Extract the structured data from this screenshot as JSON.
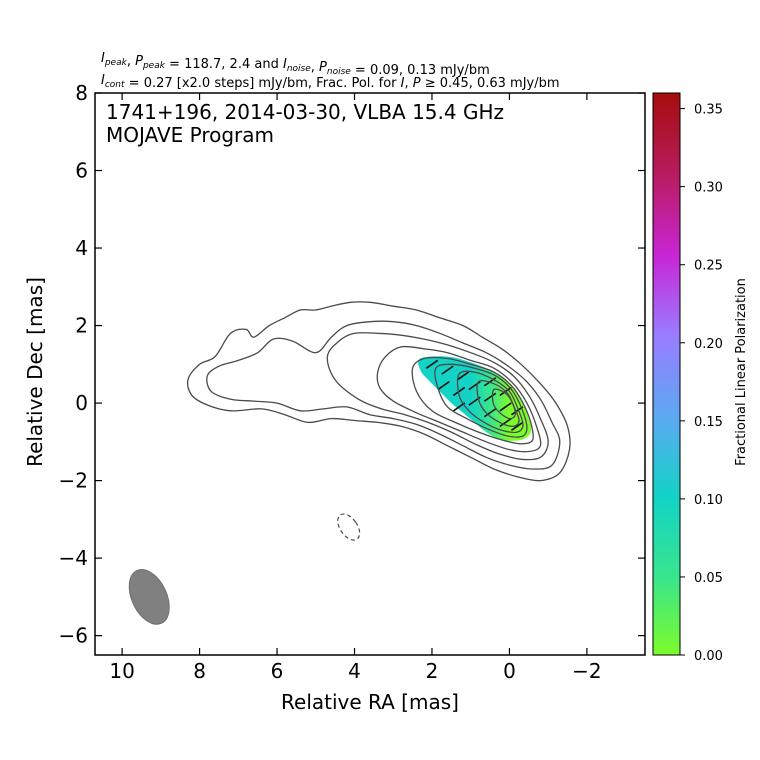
{
  "header": {
    "line1": {
      "segments": [
        {
          "t": "I",
          "style": "italic"
        },
        {
          "t": "peak",
          "style": "italic-sub"
        },
        {
          "t": ", ",
          "style": "normal"
        },
        {
          "t": "P",
          "style": "italic"
        },
        {
          "t": "peak",
          "style": "italic-sub"
        },
        {
          "t": " = 118.7, 2.4 and ",
          "style": "normal"
        },
        {
          "t": "I",
          "style": "italic"
        },
        {
          "t": "noise",
          "style": "italic-sub"
        },
        {
          "t": ", ",
          "style": "normal"
        },
        {
          "t": "P",
          "style": "italic"
        },
        {
          "t": "noise",
          "style": "italic-sub"
        },
        {
          "t": " = 0.09, 0.13 mJy/bm",
          "style": "normal"
        }
      ]
    },
    "line2": {
      "segments": [
        {
          "t": "I",
          "style": "italic"
        },
        {
          "t": "cont",
          "style": "italic-sub"
        },
        {
          "t": " = 0.27 [x2.0 steps] mJy/bm, Frac. Pol. for ",
          "style": "normal"
        },
        {
          "t": "I",
          "style": "italic"
        },
        {
          "t": ", ",
          "style": "normal"
        },
        {
          "t": "P",
          "style": "italic"
        },
        {
          "t": " ≥ 0.45, 0.63 mJy/bm",
          "style": "normal"
        }
      ]
    }
  },
  "colors": {
    "contour": "#4a4a4a",
    "beam": "#808080",
    "colormap": [
      "#7cfc2a",
      "#38e58e",
      "#12d3c6",
      "#5aaaf2",
      "#9a7cff",
      "#c826d6",
      "#b81b5a",
      "#a50d0d"
    ]
  },
  "chart_data": {
    "type": "contour",
    "annotation_line1": "1741+196, 2014-03-30, VLBA 15.4 GHz",
    "annotation_line2": "MOJAVE Program",
    "xlabel": "Relative RA [mas]",
    "ylabel": "Relative Dec [mas]",
    "xlim": [
      10.7,
      -3.5
    ],
    "ylim": [
      -6.5,
      8.0
    ],
    "xticks": [
      10,
      8,
      6,
      4,
      2,
      0,
      -2
    ],
    "xtick_labels": [
      "10",
      "8",
      "6",
      "4",
      "2",
      "0",
      "−2"
    ],
    "yticks": [
      8,
      6,
      4,
      2,
      0,
      -2,
      -4,
      -6
    ],
    "ytick_labels": [
      "8",
      "6",
      "4",
      "2",
      "0",
      "−2",
      "−4",
      "−6"
    ],
    "peak_intensity_mJy_bm": 118.7,
    "peak_polarized_mJy_bm": 2.4,
    "noise_I_mJy_bm": 0.09,
    "noise_P_mJy_bm": 0.13,
    "lowest_contour_mJy_bm": 0.27,
    "contour_step_factor": 2.0,
    "contours_outer": [
      [
        [
          8.3,
          0.6
        ],
        [
          8.0,
          1.0
        ],
        [
          7.6,
          1.2
        ],
        [
          7.2,
          1.8
        ],
        [
          6.8,
          1.9
        ],
        [
          6.6,
          1.7
        ],
        [
          6.2,
          2.0
        ],
        [
          5.8,
          2.2
        ],
        [
          5.4,
          2.4
        ],
        [
          5.0,
          2.4
        ],
        [
          4.6,
          2.5
        ],
        [
          4.1,
          2.6
        ],
        [
          3.6,
          2.6
        ],
        [
          3.0,
          2.5
        ],
        [
          2.4,
          2.4
        ],
        [
          1.8,
          2.2
        ],
        [
          1.2,
          2.0
        ],
        [
          0.7,
          1.7
        ],
        [
          0.2,
          1.4
        ],
        [
          -0.3,
          1.0
        ],
        [
          -0.8,
          0.5
        ],
        [
          -1.2,
          0.0
        ],
        [
          -1.5,
          -0.6
        ],
        [
          -1.55,
          -1.2
        ],
        [
          -1.3,
          -1.8
        ],
        [
          -0.8,
          -2.0
        ],
        [
          -0.2,
          -1.9
        ],
        [
          0.4,
          -1.7
        ],
        [
          1.0,
          -1.4
        ],
        [
          1.6,
          -1.1
        ],
        [
          2.2,
          -0.8
        ],
        [
          2.8,
          -0.6
        ],
        [
          3.4,
          -0.5
        ],
        [
          4.0,
          -0.45
        ],
        [
          4.6,
          -0.4
        ],
        [
          5.2,
          -0.5
        ],
        [
          5.8,
          -0.3
        ],
        [
          6.4,
          -0.15
        ],
        [
          7.2,
          -0.2
        ],
        [
          7.8,
          -0.05
        ],
        [
          8.2,
          0.2
        ],
        [
          8.3,
          0.6
        ]
      ],
      [
        [
          7.8,
          0.7
        ],
        [
          7.5,
          0.95
        ],
        [
          7.0,
          1.1
        ],
        [
          6.5,
          1.3
        ],
        [
          6.1,
          1.65
        ],
        [
          5.6,
          1.6
        ],
        [
          5.0,
          1.3
        ],
        [
          4.6,
          1.7
        ],
        [
          4.2,
          2.0
        ],
        [
          3.6,
          2.1
        ],
        [
          3.0,
          2.1
        ],
        [
          2.4,
          2.0
        ],
        [
          1.8,
          1.8
        ],
        [
          1.2,
          1.55
        ],
        [
          0.6,
          1.3
        ],
        [
          0.1,
          1.0
        ],
        [
          -0.4,
          0.6
        ],
        [
          -0.8,
          0.1
        ],
        [
          -1.1,
          -0.5
        ],
        [
          -1.3,
          -1.0
        ],
        [
          -1.1,
          -1.6
        ],
        [
          -0.6,
          -1.7
        ],
        [
          0.0,
          -1.6
        ],
        [
          0.6,
          -1.4
        ],
        [
          1.2,
          -1.1
        ],
        [
          1.8,
          -0.8
        ],
        [
          2.4,
          -0.55
        ],
        [
          3.0,
          -0.4
        ],
        [
          3.6,
          -0.3
        ],
        [
          4.2,
          -0.1
        ],
        [
          4.8,
          -0.15
        ],
        [
          5.4,
          -0.2
        ],
        [
          6.0,
          0.0
        ],
        [
          6.6,
          0.05
        ],
        [
          7.2,
          0.1
        ],
        [
          7.7,
          0.3
        ],
        [
          7.8,
          0.7
        ]
      ],
      [
        [
          4.7,
          1.2
        ],
        [
          4.4,
          1.6
        ],
        [
          4.0,
          1.8
        ],
        [
          3.4,
          1.8
        ],
        [
          2.8,
          1.75
        ],
        [
          2.2,
          1.65
        ],
        [
          1.6,
          1.5
        ],
        [
          1.0,
          1.3
        ],
        [
          0.4,
          1.05
        ],
        [
          -0.1,
          0.7
        ],
        [
          -0.5,
          0.2
        ],
        [
          -0.8,
          -0.4
        ],
        [
          -1.0,
          -1.0
        ],
        [
          -0.8,
          -1.4
        ],
        [
          -0.3,
          -1.45
        ],
        [
          0.3,
          -1.3
        ],
        [
          0.9,
          -1.05
        ],
        [
          1.5,
          -0.75
        ],
        [
          2.1,
          -0.5
        ],
        [
          2.7,
          -0.3
        ],
        [
          3.3,
          -0.15
        ],
        [
          3.9,
          0.1
        ],
        [
          4.5,
          0.6
        ],
        [
          4.7,
          1.2
        ]
      ],
      [
        [
          3.4,
          0.8
        ],
        [
          3.2,
          1.2
        ],
        [
          2.8,
          1.45
        ],
        [
          2.2,
          1.4
        ],
        [
          1.6,
          1.3
        ],
        [
          1.0,
          1.1
        ],
        [
          0.4,
          0.9
        ],
        [
          -0.1,
          0.5
        ],
        [
          -0.45,
          0.0
        ],
        [
          -0.7,
          -0.6
        ],
        [
          -0.8,
          -1.1
        ],
        [
          -0.5,
          -1.25
        ],
        [
          0.0,
          -1.2
        ],
        [
          0.6,
          -1.0
        ],
        [
          1.2,
          -0.75
        ],
        [
          1.8,
          -0.5
        ],
        [
          2.4,
          -0.25
        ],
        [
          3.0,
          0.05
        ],
        [
          3.35,
          0.4
        ],
        [
          3.4,
          0.8
        ]
      ],
      [
        [
          2.5,
          0.9
        ],
        [
          2.2,
          1.15
        ],
        [
          1.6,
          1.15
        ],
        [
          1.0,
          1.0
        ],
        [
          0.4,
          0.8
        ],
        [
          -0.05,
          0.45
        ],
        [
          -0.35,
          0.0
        ],
        [
          -0.55,
          -0.5
        ],
        [
          -0.6,
          -0.95
        ],
        [
          -0.3,
          -1.05
        ],
        [
          0.2,
          -0.95
        ],
        [
          0.8,
          -0.75
        ],
        [
          1.4,
          -0.5
        ],
        [
          2.0,
          -0.2
        ],
        [
          2.4,
          0.3
        ],
        [
          2.5,
          0.9
        ]
      ],
      [
        [
          1.9,
          0.9
        ],
        [
          1.5,
          1.0
        ],
        [
          0.9,
          0.9
        ],
        [
          0.35,
          0.7
        ],
        [
          -0.05,
          0.35
        ],
        [
          -0.3,
          -0.1
        ],
        [
          -0.45,
          -0.6
        ],
        [
          -0.35,
          -0.85
        ],
        [
          0.05,
          -0.85
        ],
        [
          0.6,
          -0.65
        ],
        [
          1.1,
          -0.4
        ],
        [
          1.6,
          -0.1
        ],
        [
          1.85,
          0.4
        ],
        [
          1.9,
          0.9
        ]
      ],
      [
        [
          1.3,
          0.75
        ],
        [
          0.9,
          0.8
        ],
        [
          0.4,
          0.6
        ],
        [
          0.0,
          0.3
        ],
        [
          -0.2,
          -0.1
        ],
        [
          -0.35,
          -0.55
        ],
        [
          -0.2,
          -0.75
        ],
        [
          0.2,
          -0.7
        ],
        [
          0.65,
          -0.5
        ],
        [
          1.05,
          -0.2
        ],
        [
          1.3,
          0.2
        ],
        [
          1.3,
          0.75
        ]
      ],
      [
        [
          0.8,
          0.55
        ],
        [
          0.4,
          0.5
        ],
        [
          0.05,
          0.25
        ],
        [
          -0.12,
          -0.1
        ],
        [
          -0.25,
          -0.45
        ],
        [
          -0.1,
          -0.6
        ],
        [
          0.25,
          -0.5
        ],
        [
          0.6,
          -0.25
        ],
        [
          0.8,
          0.1
        ],
        [
          0.8,
          0.55
        ]
      ],
      [
        [
          0.4,
          0.35
        ],
        [
          0.1,
          0.25
        ],
        [
          -0.08,
          0.0
        ],
        [
          -0.15,
          -0.3
        ],
        [
          0.0,
          -0.4
        ],
        [
          0.25,
          -0.25
        ],
        [
          0.42,
          0.0
        ],
        [
          0.4,
          0.35
        ]
      ]
    ],
    "negative_contour": {
      "x": 4.15,
      "y": -3.2,
      "rx": 0.22,
      "ry": 0.38,
      "angle_deg": -35
    },
    "beam": {
      "x": 9.3,
      "y": -5.0,
      "major_mas": 1.5,
      "minor_mas": 0.9,
      "pa_deg": 25
    },
    "polarization_map": {
      "region": [
        [
          2.3,
          1.15
        ],
        [
          1.6,
          1.2
        ],
        [
          1.0,
          1.05
        ],
        [
          0.4,
          0.8
        ],
        [
          0.0,
          0.5
        ],
        [
          -0.3,
          0.1
        ],
        [
          -0.5,
          -0.4
        ],
        [
          -0.55,
          -0.75
        ],
        [
          -0.3,
          -0.95
        ],
        [
          0.2,
          -0.95
        ],
        [
          0.6,
          -0.75
        ],
        [
          0.9,
          -0.5
        ],
        [
          1.2,
          -0.25
        ],
        [
          1.5,
          0.0
        ],
        [
          1.8,
          0.3
        ],
        [
          2.1,
          0.6
        ],
        [
          2.3,
          0.85
        ],
        [
          2.3,
          1.15
        ]
      ],
      "cells_fraction_samples": [
        {
          "x": 2.1,
          "y": 1.0,
          "frac": 0.11
        },
        {
          "x": 1.5,
          "y": 0.8,
          "frac": 0.1
        },
        {
          "x": 1.0,
          "y": 0.5,
          "frac": 0.08
        },
        {
          "x": 0.5,
          "y": 0.2,
          "frac": 0.04
        },
        {
          "x": 0.0,
          "y": -0.2,
          "frac": 0.02
        },
        {
          "x": -0.3,
          "y": -0.6,
          "frac": 0.01
        }
      ],
      "evpa_ticks": [
        {
          "x": 2.0,
          "y": 1.0,
          "angle_deg": -35
        },
        {
          "x": 1.6,
          "y": 0.85,
          "angle_deg": -35
        },
        {
          "x": 1.2,
          "y": 0.7,
          "angle_deg": -35
        },
        {
          "x": 1.7,
          "y": 0.45,
          "angle_deg": -35
        },
        {
          "x": 1.3,
          "y": 0.3,
          "angle_deg": -35
        },
        {
          "x": 0.9,
          "y": 0.45,
          "angle_deg": -35
        },
        {
          "x": 0.9,
          "y": 0.05,
          "angle_deg": -35
        },
        {
          "x": 0.5,
          "y": 0.55,
          "angle_deg": -35
        },
        {
          "x": 0.5,
          "y": 0.15,
          "angle_deg": -35
        },
        {
          "x": 0.5,
          "y": -0.25,
          "angle_deg": -35
        },
        {
          "x": 0.1,
          "y": 0.3,
          "angle_deg": -35
        },
        {
          "x": 0.1,
          "y": -0.1,
          "angle_deg": -35
        },
        {
          "x": 0.1,
          "y": -0.5,
          "angle_deg": -35
        },
        {
          "x": -0.2,
          "y": -0.2,
          "angle_deg": -35
        },
        {
          "x": -0.2,
          "y": -0.6,
          "angle_deg": -35
        },
        {
          "x": 1.3,
          "y": -0.1,
          "angle_deg": -35
        }
      ]
    },
    "colorbar": {
      "label": "Fractional Linear Polarization",
      "vmin": 0.0,
      "vmax": 0.36,
      "ticks": [
        0.0,
        0.05,
        0.1,
        0.15,
        0.2,
        0.25,
        0.3,
        0.35
      ],
      "tick_labels": [
        "0.00",
        "0.05",
        "0.10",
        "0.15",
        "0.20",
        "0.25",
        "0.30",
        "0.35"
      ]
    }
  }
}
